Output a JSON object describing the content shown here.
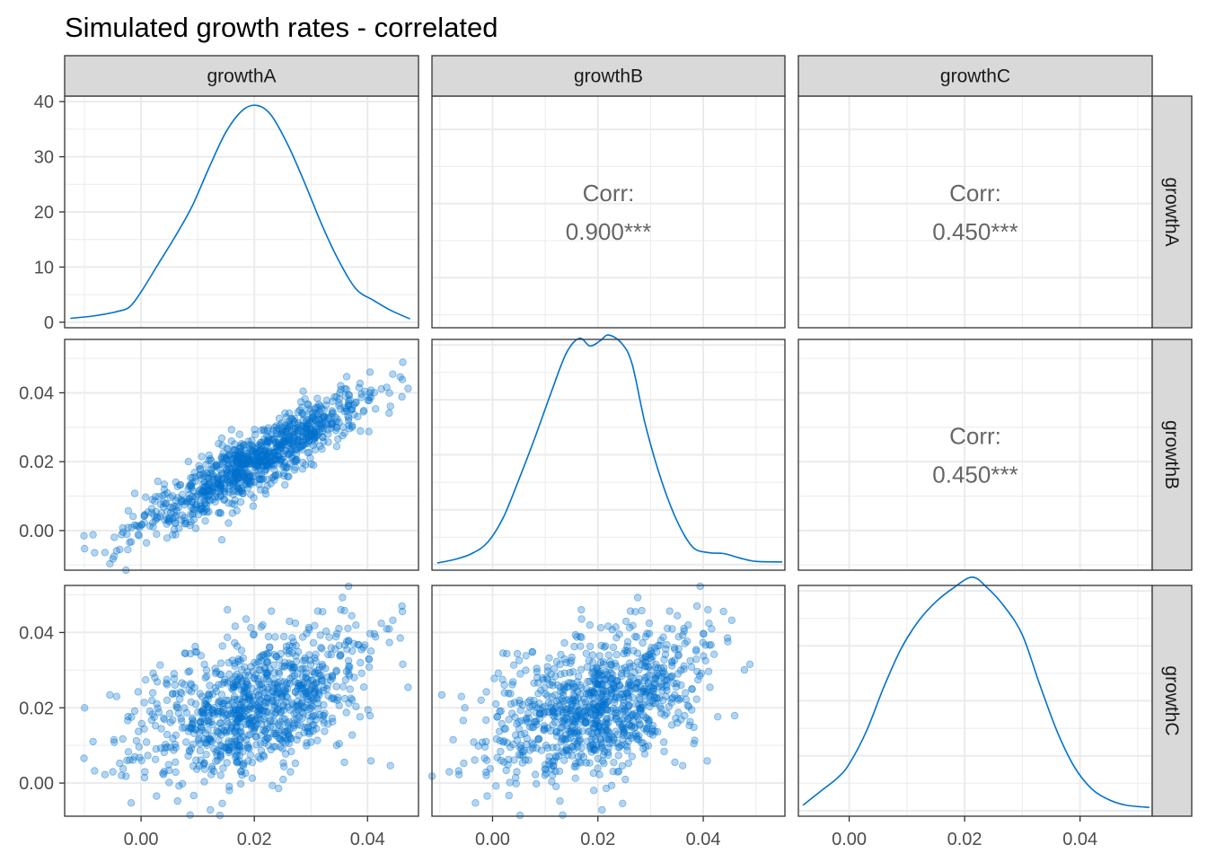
{
  "title": "Simulated growth rates - correlated",
  "colors": {
    "series": "#0072CE",
    "strip_fill": "#D9D9D9",
    "panel_border": "#333333",
    "grid": "#EBEBEB",
    "corr_text": "#666666",
    "tick_text": "#4D4D4D"
  },
  "variables": [
    "growthA",
    "growthB",
    "growthC"
  ],
  "chart_data": {
    "type": "scatterplot-matrix",
    "title": "Simulated growth rates - correlated",
    "variables": [
      "growthA",
      "growthB",
      "growthC"
    ],
    "grid": true,
    "x_ticks": [
      "0.00",
      "0.02",
      "0.04"
    ],
    "x_tick_values": [
      0.0,
      0.02,
      0.04
    ],
    "density_y_ticks": [
      "0",
      "10",
      "20",
      "30",
      "40"
    ],
    "density_y_tick_values": [
      0,
      10,
      20,
      30,
      40
    ],
    "scatter_y_ticks": [
      "0.00",
      "0.02",
      "0.04"
    ],
    "scatter_y_tick_values": [
      0.0,
      0.02,
      0.04
    ],
    "ranges": {
      "growthA": [
        -0.0135,
        0.049
      ],
      "growthB": [
        -0.0115,
        0.0555
      ],
      "growthC": [
        -0.0088,
        0.0525
      ]
    },
    "density_ylim": [
      -1,
      41
    ],
    "correlations": [
      {
        "row": "growthA",
        "col": "growthB",
        "label": "Corr:",
        "value": "0.900***"
      },
      {
        "row": "growthA",
        "col": "growthC",
        "label": "Corr:",
        "value": "0.450***"
      },
      {
        "row": "growthB",
        "col": "growthC",
        "label": "Corr:",
        "value": "0.450***"
      }
    ],
    "densities": {
      "growthA": {
        "x": [
          -0.0125,
          -0.008,
          -0.004,
          -0.002,
          0.0,
          0.003,
          0.006,
          0.009,
          0.012,
          0.015,
          0.018,
          0.0205,
          0.023,
          0.026,
          0.029,
          0.032,
          0.035,
          0.038,
          0.041,
          0.044,
          0.0475
        ],
        "y": [
          0.7,
          1.2,
          2.0,
          2.8,
          5.5,
          10.5,
          15.5,
          21,
          28,
          34.5,
          38.5,
          39.3,
          37.5,
          32,
          25,
          17.5,
          11,
          6,
          4,
          2.2,
          0.6
        ]
      },
      "growthB": {
        "x": [
          -0.0105,
          -0.007,
          -0.004,
          -0.001,
          0.002,
          0.005,
          0.008,
          0.011,
          0.014,
          0.0165,
          0.0185,
          0.0205,
          0.022,
          0.0245,
          0.0265,
          0.029,
          0.032,
          0.035,
          0.038,
          0.041,
          0.044,
          0.047,
          0.05,
          0.055
        ],
        "y": [
          0.3,
          1.0,
          2.0,
          4.0,
          8.5,
          15.5,
          23,
          31,
          38.5,
          41.2,
          39.8,
          40.8,
          41.8,
          40.3,
          36.5,
          25.5,
          15.5,
          8.0,
          3.2,
          2.2,
          2.0,
          1.2,
          0.6,
          0.5
        ]
      },
      "growthC": {
        "x": [
          -0.008,
          -0.005,
          -0.002,
          0.0,
          0.003,
          0.006,
          0.009,
          0.012,
          0.015,
          0.018,
          0.0213,
          0.024,
          0.027,
          0.03,
          0.033,
          0.036,
          0.039,
          0.042,
          0.045,
          0.048,
          0.052
        ],
        "y": [
          1.0,
          3.5,
          6.0,
          8.5,
          14.5,
          22.5,
          29.5,
          34.5,
          38,
          40.5,
          42.5,
          40.5,
          37,
          32,
          23,
          14.5,
          8,
          4,
          2.0,
          1.0,
          0.6
        ]
      }
    },
    "scatter": {
      "n_points": 1000,
      "pairs": [
        {
          "x": "growthA",
          "y": "growthB",
          "corr": 0.9
        },
        {
          "x": "growthA",
          "y": "growthC",
          "corr": 0.45
        },
        {
          "x": "growthB",
          "y": "growthC",
          "corr": 0.45
        }
      ],
      "marginal_mean": 0.02,
      "marginal_sd": 0.01,
      "point_opacity": 0.3
    }
  }
}
